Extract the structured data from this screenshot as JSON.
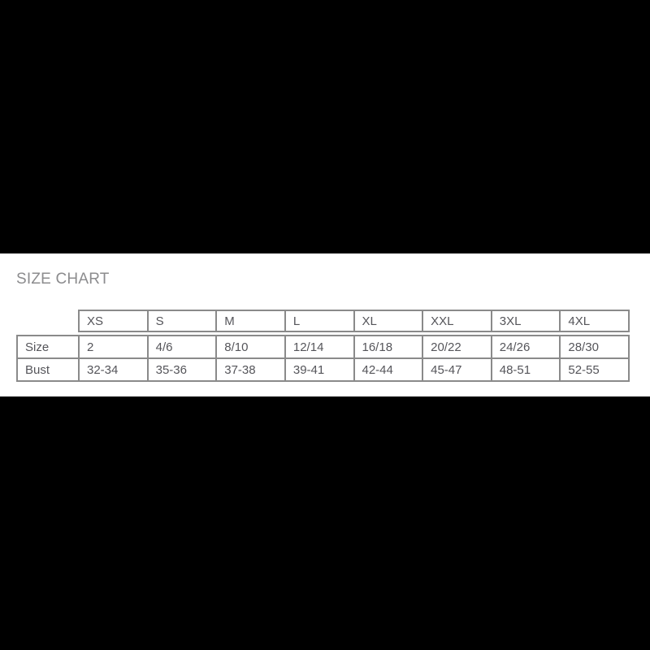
{
  "canvas": {
    "background": "#000000"
  },
  "panel": {
    "background": "#ffffff"
  },
  "size_chart": {
    "title": "SIZE CHART",
    "columns": [
      "XS",
      "S",
      "M",
      "L",
      "XL",
      "XXL",
      "3XL",
      "4XL"
    ],
    "rows": [
      {
        "label": "Size",
        "values": [
          "2",
          "4/6",
          "8/10",
          "12/14",
          "16/18",
          "20/22",
          "24/26",
          "28/30"
        ]
      },
      {
        "label": "Bust",
        "values": [
          "32-34",
          "35-36",
          "37-38",
          "39-41",
          "42-44",
          "45-47",
          "48-51",
          "52-55"
        ]
      }
    ],
    "colors": {
      "title": "#8c8c8e",
      "border": "#8a8a8a",
      "text": "#55555a"
    }
  },
  "chart_data": {
    "type": "table",
    "title": "SIZE CHART",
    "columns": [
      "",
      "XS",
      "S",
      "M",
      "L",
      "XL",
      "XXL",
      "3XL",
      "4XL"
    ],
    "rows": [
      [
        "Size",
        "2",
        "4/6",
        "8/10",
        "12/14",
        "16/18",
        "20/22",
        "24/26",
        "28/30"
      ],
      [
        "Bust",
        "32-34",
        "35-36",
        "37-38",
        "39-41",
        "42-44",
        "45-47",
        "48-51",
        "52-55"
      ]
    ]
  }
}
